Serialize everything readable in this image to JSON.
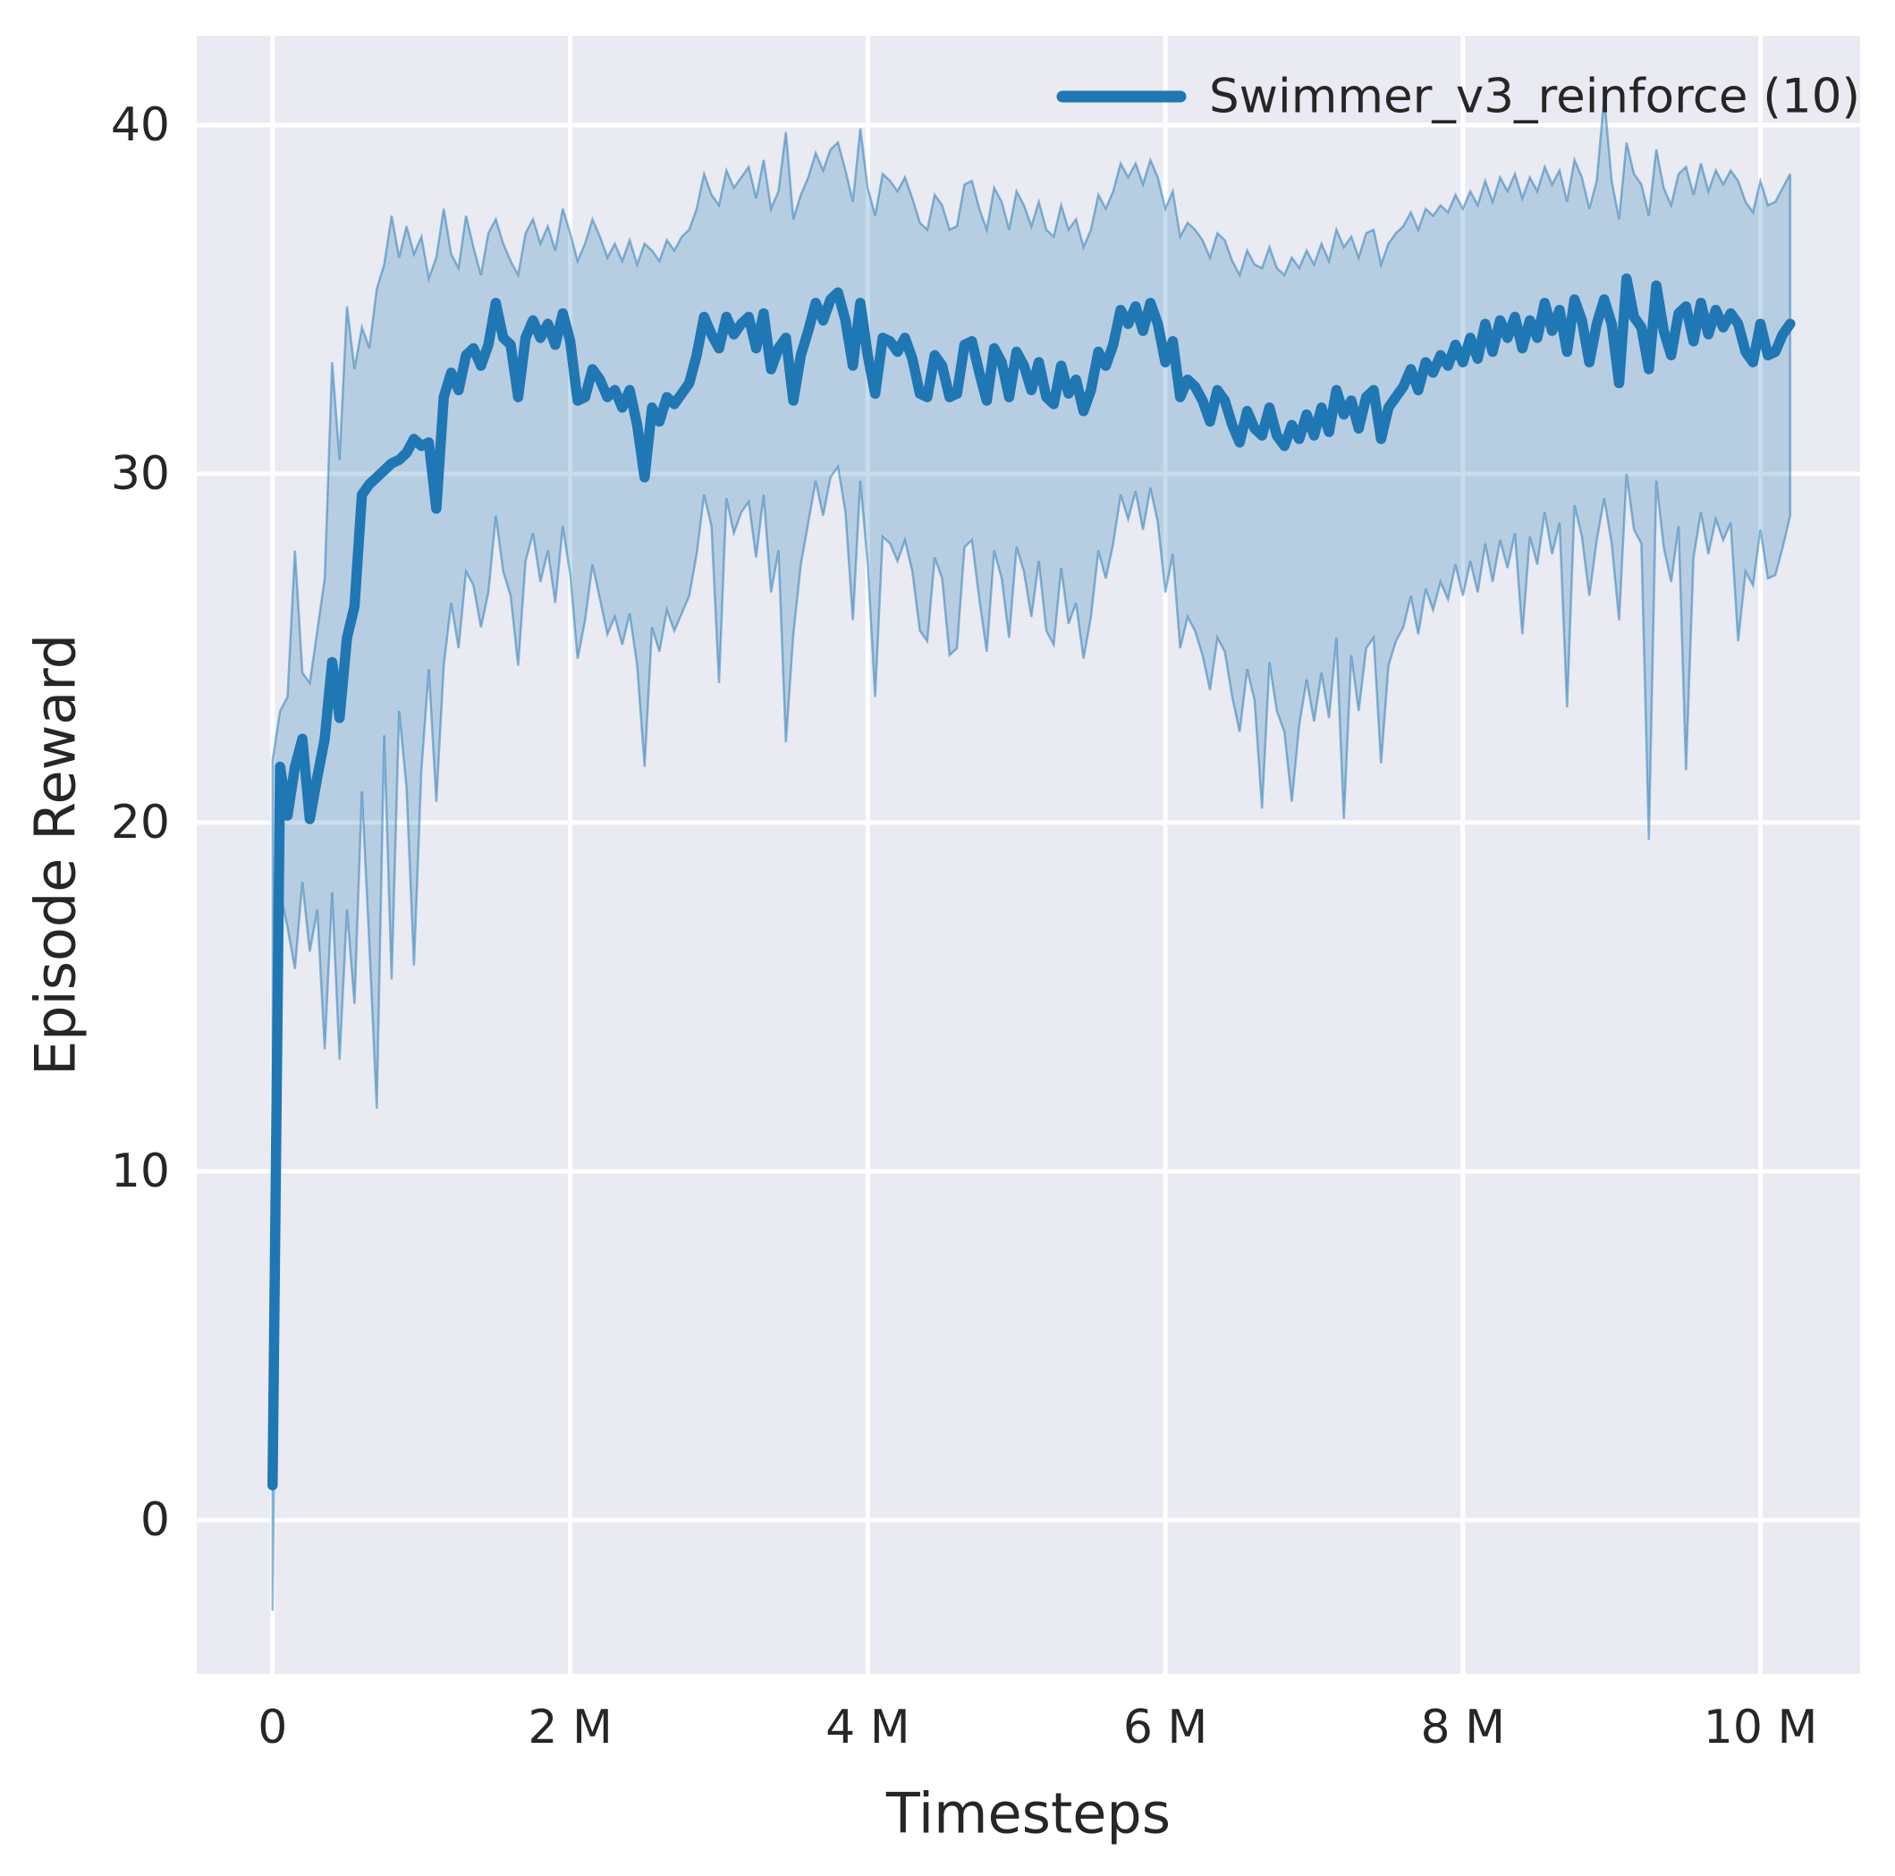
{
  "legend": {
    "label": "Swimmer_v3_reinforce (10)"
  },
  "chart_data": {
    "type": "line",
    "title": "",
    "xlabel": "Timesteps",
    "ylabel": "Episode Reward",
    "x_unit": "millions of timesteps",
    "xlim": [
      -0.51,
      10.67
    ],
    "ylim": [
      -4.41,
      42.56
    ],
    "grid": true,
    "legend_position": "upper right",
    "xticks": {
      "values": [
        0,
        2,
        4,
        6,
        8,
        10
      ],
      "labels": [
        "0",
        "2 M",
        "4 M",
        "6 M",
        "8 M",
        "10 M"
      ]
    },
    "yticks": {
      "values": [
        0,
        10,
        20,
        30,
        40
      ],
      "labels": [
        "0",
        "10",
        "20",
        "30",
        "40"
      ]
    },
    "style": {
      "plot_background": "#eaeaf2",
      "grid_color": "#ffffff",
      "text_color": "#262626"
    },
    "series": [
      {
        "name": "Swimmer_v3_reinforce (10)",
        "color": "#1f77b4",
        "band_fill_opacity": 0.25,
        "band_edge_opacity": 0.5,
        "x": [
          0,
          0.05,
          0.1,
          0.15,
          0.2,
          0.25,
          0.3,
          0.35,
          0.4,
          0.45,
          0.5,
          0.55,
          0.6,
          0.65,
          0.7,
          0.75,
          0.8,
          0.85,
          0.9,
          0.95,
          1,
          1.05,
          1.1,
          1.15,
          1.2,
          1.25,
          1.3,
          1.35,
          1.4,
          1.45,
          1.5,
          1.55,
          1.6,
          1.65,
          1.7,
          1.75,
          1.8,
          1.85,
          1.9,
          1.95,
          2,
          2.05,
          2.1,
          2.15,
          2.2,
          2.25,
          2.3,
          2.35,
          2.4,
          2.45,
          2.5,
          2.55,
          2.6,
          2.65,
          2.7,
          2.75,
          2.8,
          2.85,
          2.9,
          2.95,
          3,
          3.05,
          3.1,
          3.15,
          3.2,
          3.25,
          3.3,
          3.35,
          3.4,
          3.45,
          3.5,
          3.55,
          3.6,
          3.65,
          3.7,
          3.75,
          3.8,
          3.85,
          3.9,
          3.95,
          4,
          4.05,
          4.1,
          4.15,
          4.2,
          4.25,
          4.3,
          4.35,
          4.4,
          4.45,
          4.5,
          4.55,
          4.6,
          4.65,
          4.7,
          4.75,
          4.8,
          4.85,
          4.9,
          4.95,
          5,
          5.05,
          5.1,
          5.15,
          5.2,
          5.25,
          5.3,
          5.35,
          5.4,
          5.45,
          5.5,
          5.55,
          5.6,
          5.65,
          5.7,
          5.75,
          5.8,
          5.85,
          5.9,
          5.95,
          6,
          6.05,
          6.1,
          6.15,
          6.2,
          6.25,
          6.3,
          6.35,
          6.4,
          6.45,
          6.5,
          6.55,
          6.6,
          6.65,
          6.7,
          6.75,
          6.8,
          6.85,
          6.9,
          6.95,
          7,
          7.05,
          7.1,
          7.15,
          7.2,
          7.25,
          7.3,
          7.35,
          7.4,
          7.45,
          7.5,
          7.55,
          7.6,
          7.65,
          7.7,
          7.75,
          7.8,
          7.85,
          7.9,
          7.95,
          8,
          8.05,
          8.1,
          8.15,
          8.2,
          8.25,
          8.3,
          8.35,
          8.4,
          8.45,
          8.5,
          8.55,
          8.6,
          8.65,
          8.7,
          8.75,
          8.8,
          8.85,
          8.9,
          8.95,
          9,
          9.05,
          9.1,
          9.15,
          9.2,
          9.25,
          9.3,
          9.35,
          9.4,
          9.45,
          9.5,
          9.55,
          9.6,
          9.65,
          9.7,
          9.75,
          9.8,
          9.85,
          9.9,
          9.95,
          10,
          10.05,
          10.1,
          10.15,
          10.2
        ],
        "mean": [
          1.0,
          21.6,
          20.2,
          21.6,
          22.4,
          20.1,
          21.3,
          22.4,
          24.6,
          23.0,
          25.3,
          26.2,
          29.4,
          29.7,
          29.9,
          30.1,
          30.3,
          30.4,
          30.6,
          31.0,
          30.8,
          30.9,
          29.0,
          32.2,
          32.9,
          32.4,
          33.4,
          33.6,
          33.1,
          33.7,
          34.9,
          33.9,
          33.7,
          32.2,
          33.9,
          34.4,
          33.9,
          34.3,
          33.7,
          34.6,
          33.8,
          32.1,
          32.2,
          33.0,
          32.7,
          32.2,
          32.4,
          31.9,
          32.4,
          31.4,
          29.9,
          31.9,
          31.5,
          32.2,
          32.0,
          32.3,
          32.6,
          33.4,
          34.5,
          34.0,
          33.6,
          34.5,
          34.0,
          34.3,
          34.5,
          33.6,
          34.6,
          33.0,
          33.6,
          33.9,
          32.1,
          33.4,
          34.1,
          34.9,
          34.4,
          35.0,
          35.2,
          34.4,
          33.1,
          34.9,
          33.4,
          32.3,
          33.9,
          33.8,
          33.5,
          33.9,
          33.3,
          32.3,
          32.2,
          33.4,
          33.1,
          32.2,
          32.3,
          33.7,
          33.8,
          32.9,
          32.1,
          33.6,
          33.2,
          32.2,
          33.5,
          33.1,
          32.4,
          33.2,
          32.2,
          32.0,
          33.1,
          32.3,
          32.7,
          31.8,
          32.4,
          33.5,
          33.1,
          33.7,
          34.7,
          34.3,
          34.8,
          34.1,
          34.9,
          34.3,
          33.2,
          33.8,
          32.2,
          32.7,
          32.5,
          32.1,
          31.5,
          32.4,
          32.1,
          31.4,
          30.9,
          31.8,
          31.3,
          31.1,
          31.9,
          31.1,
          30.8,
          31.4,
          31.0,
          31.7,
          31.1,
          31.9,
          31.2,
          32.4,
          31.7,
          32.1,
          31.3,
          32.2,
          32.4,
          31.0,
          31.9,
          32.2,
          32.5,
          33.0,
          32.4,
          33.2,
          32.9,
          33.4,
          33.1,
          33.7,
          33.2,
          33.9,
          33.3,
          34.3,
          33.5,
          34.4,
          33.9,
          34.5,
          33.6,
          34.4,
          33.9,
          34.9,
          34.1,
          34.7,
          33.5,
          35.0,
          34.4,
          33.2,
          34.3,
          35.0,
          34.3,
          32.6,
          35.6,
          34.5,
          34.2,
          33.0,
          35.4,
          34.1,
          33.4,
          34.6,
          34.8,
          33.8,
          34.9,
          34.0,
          34.7,
          34.2,
          34.6,
          34.3,
          33.5,
          33.2,
          34.3,
          33.4,
          33.5,
          34.0,
          34.3
        ],
        "band_upper": [
          21.8,
          23.2,
          23.6,
          27.8,
          24.3,
          24.0,
          25.5,
          27.0,
          33.2,
          30.4,
          34.8,
          33.0,
          34.2,
          33.6,
          35.3,
          36.0,
          37.4,
          36.2,
          37.1,
          36.3,
          36.8,
          35.6,
          36.2,
          37.6,
          36.3,
          35.9,
          37.4,
          36.5,
          35.7,
          36.9,
          37.3,
          36.6,
          36.1,
          35.7,
          36.9,
          37.3,
          36.6,
          37.1,
          36.4,
          37.6,
          36.9,
          36.1,
          36.6,
          37.3,
          36.8,
          36.2,
          36.6,
          36.1,
          36.7,
          36.0,
          36.6,
          36.4,
          36.1,
          36.7,
          36.4,
          36.8,
          37.0,
          37.6,
          38.6,
          38.0,
          37.7,
          38.7,
          38.2,
          38.5,
          38.8,
          37.9,
          39.0,
          37.6,
          38.1,
          39.8,
          37.3,
          38.0,
          38.5,
          39.2,
          38.7,
          39.3,
          39.5,
          38.7,
          37.8,
          39.9,
          38.2,
          37.4,
          38.6,
          38.4,
          38.1,
          38.5,
          37.9,
          37.2,
          37.0,
          38.0,
          37.7,
          37.0,
          37.1,
          38.3,
          38.4,
          37.6,
          37.0,
          38.2,
          37.8,
          37.0,
          38.1,
          37.7,
          37.1,
          37.8,
          37.0,
          36.8,
          37.7,
          37.0,
          37.3,
          36.5,
          37.0,
          38.0,
          37.6,
          38.1,
          38.9,
          38.5,
          38.9,
          38.3,
          39.0,
          38.5,
          37.6,
          38.1,
          36.8,
          37.2,
          37.0,
          36.7,
          36.2,
          36.9,
          36.7,
          36.1,
          35.7,
          36.4,
          36.0,
          35.9,
          36.5,
          35.9,
          35.7,
          36.2,
          35.9,
          36.4,
          36.0,
          36.6,
          36.1,
          37.0,
          36.5,
          36.8,
          36.2,
          36.9,
          37.0,
          36.0,
          36.6,
          36.9,
          37.1,
          37.5,
          37.0,
          37.6,
          37.4,
          37.7,
          37.5,
          38.0,
          37.6,
          38.1,
          37.7,
          38.4,
          37.8,
          38.5,
          38.1,
          38.6,
          37.9,
          38.5,
          38.1,
          38.8,
          38.3,
          38.7,
          37.8,
          39.0,
          38.5,
          37.6,
          38.4,
          40.8,
          38.4,
          37.3,
          39.5,
          38.6,
          38.3,
          37.4,
          39.3,
          38.2,
          37.7,
          38.6,
          38.8,
          38.0,
          38.9,
          38.1,
          38.7,
          38.3,
          38.7,
          38.4,
          37.8,
          37.5,
          38.4,
          37.7,
          37.8,
          38.2,
          38.6
        ],
        "band_lower": [
          -2.6,
          18.0,
          17.0,
          15.8,
          18.3,
          16.3,
          17.5,
          13.5,
          18.0,
          13.2,
          17.5,
          14.8,
          20.9,
          16.5,
          11.8,
          22.5,
          15.5,
          23.2,
          21.0,
          15.9,
          21.5,
          24.4,
          20.6,
          24.5,
          26.3,
          25.0,
          27.2,
          26.8,
          25.6,
          26.6,
          28.8,
          27.2,
          26.5,
          24.5,
          27.5,
          28.3,
          26.9,
          27.8,
          26.3,
          28.5,
          27.1,
          24.7,
          25.8,
          27.4,
          26.4,
          25.4,
          25.9,
          25.1,
          26.0,
          24.5,
          21.6,
          25.6,
          24.9,
          26.1,
          25.5,
          26.0,
          26.5,
          27.7,
          29.4,
          28.5,
          24.0,
          29.3,
          28.3,
          28.9,
          29.2,
          27.6,
          29.4,
          26.6,
          27.8,
          22.3,
          25.4,
          27.4,
          28.6,
          29.8,
          28.8,
          29.9,
          30.2,
          28.9,
          25.8,
          29.8,
          27.4,
          23.6,
          28.2,
          28.0,
          27.5,
          28.1,
          27.2,
          25.5,
          25.2,
          27.6,
          27.0,
          24.8,
          25.0,
          27.9,
          28.1,
          26.4,
          24.9,
          27.8,
          27.0,
          25.3,
          27.9,
          27.2,
          25.9,
          27.5,
          25.5,
          25.1,
          27.3,
          25.7,
          26.3,
          24.7,
          25.9,
          27.8,
          27.0,
          28.0,
          29.4,
          28.7,
          29.5,
          28.4,
          29.6,
          28.6,
          26.6,
          27.7,
          25.0,
          25.9,
          25.5,
          24.8,
          23.8,
          25.3,
          24.9,
          23.6,
          22.6,
          24.4,
          23.5,
          20.4,
          24.6,
          23.2,
          22.6,
          20.6,
          22.8,
          24.1,
          22.9,
          24.3,
          23.0,
          25.3,
          20.1,
          24.8,
          23.2,
          25.0,
          25.3,
          21.7,
          24.5,
          25.2,
          25.6,
          26.5,
          25.4,
          26.7,
          26.1,
          26.9,
          26.4,
          27.4,
          26.5,
          27.5,
          26.6,
          28.0,
          26.9,
          28.1,
          27.3,
          28.3,
          25.4,
          28.2,
          27.4,
          28.9,
          27.7,
          28.6,
          23.3,
          29.1,
          28.2,
          26.5,
          28.1,
          29.3,
          28.0,
          25.8,
          30.0,
          28.4,
          28.0,
          19.5,
          29.8,
          27.9,
          26.9,
          28.5,
          21.5,
          27.6,
          28.9,
          27.7,
          28.7,
          28.1,
          28.6,
          25.2,
          27.2,
          26.8,
          28.4,
          27.0,
          27.1,
          27.9,
          28.8
        ]
      }
    ]
  }
}
